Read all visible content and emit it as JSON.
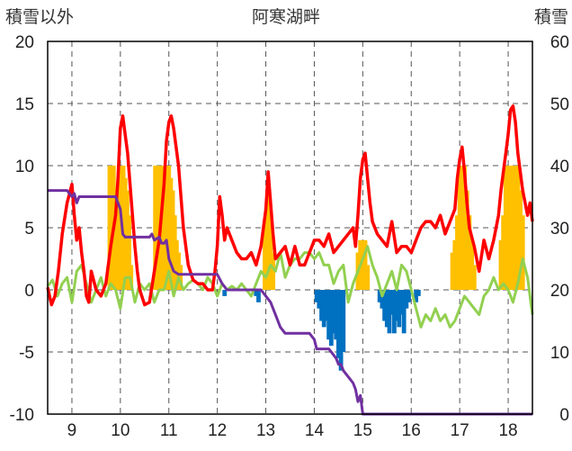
{
  "chart_data": {
    "type": "combo",
    "title": "阿寒湖畔",
    "left_axis_label": "積雪以外",
    "right_axis_label": "積雪",
    "x_ticks": [
      "9",
      "10",
      "11",
      "12",
      "13",
      "14",
      "15",
      "16",
      "17",
      "18"
    ],
    "x_range": [
      8.5,
      18.5
    ],
    "left_ylim": [
      -10,
      20
    ],
    "left_yticks": [
      20,
      15,
      10,
      5,
      0,
      -5,
      -10
    ],
    "right_ylim": [
      0,
      60
    ],
    "right_yticks": [
      60,
      50,
      40,
      30,
      20,
      10,
      0
    ],
    "grid": "dashed vertical and horizontal",
    "colors": {
      "red": "#ff0000",
      "green": "#92d050",
      "purple": "#7030a0",
      "orange": "#ffc000",
      "blue": "#0070c0"
    },
    "series": [
      {
        "color": "red",
        "kind": "line",
        "axis": "left",
        "x": [
          8.5,
          8.58,
          8.65,
          8.72,
          8.8,
          8.9,
          9.0,
          9.05,
          9.1,
          9.15,
          9.2,
          9.25,
          9.3,
          9.35,
          9.4,
          9.5,
          9.6,
          9.7,
          9.8,
          9.9,
          9.95,
          10.0,
          10.05,
          10.1,
          10.15,
          10.2,
          10.25,
          10.3,
          10.35,
          10.4,
          10.5,
          10.6,
          10.7,
          10.8,
          10.9,
          10.95,
          11.0,
          11.05,
          11.1,
          11.2,
          11.3,
          11.4,
          11.5,
          11.6,
          11.7,
          11.8,
          11.9,
          11.95,
          12.0,
          12.05,
          12.1,
          12.15,
          12.2,
          12.3,
          12.4,
          12.5,
          12.6,
          12.7,
          12.8,
          12.9,
          12.95,
          13.0,
          13.05,
          13.1,
          13.15,
          13.2,
          13.3,
          13.4,
          13.5,
          13.6,
          13.7,
          13.8,
          13.9,
          14.0,
          14.1,
          14.2,
          14.3,
          14.4,
          14.5,
          14.6,
          14.7,
          14.8,
          14.85,
          14.9,
          14.95,
          15.0,
          15.05,
          15.1,
          15.15,
          15.2,
          15.3,
          15.4,
          15.5,
          15.6,
          15.7,
          15.8,
          15.9,
          16.0,
          16.1,
          16.2,
          16.3,
          16.4,
          16.5,
          16.6,
          16.7,
          16.8,
          16.9,
          16.95,
          17.0,
          17.05,
          17.1,
          17.15,
          17.2,
          17.3,
          17.4,
          17.5,
          17.6,
          17.7,
          17.8,
          17.85,
          17.9,
          17.95,
          18.0,
          18.05,
          18.1,
          18.15,
          18.2,
          18.3,
          18.4,
          18.45,
          18.5
        ],
        "y": [
          0.2,
          -1.2,
          -0.5,
          1.5,
          4.5,
          7.0,
          8.5,
          6.0,
          4.0,
          5.0,
          3.0,
          1.5,
          -0.5,
          -1.0,
          1.5,
          0.0,
          -0.5,
          0.5,
          3.5,
          6.0,
          9.0,
          13.0,
          14.0,
          12.5,
          11.0,
          8.5,
          6.0,
          3.5,
          1.5,
          0.0,
          -1.2,
          -1.0,
          1.5,
          4.0,
          8.5,
          12.0,
          13.5,
          14.0,
          13.0,
          10.0,
          5.0,
          2.0,
          0.8,
          0.5,
          0.5,
          0.0,
          0.0,
          1.5,
          3.5,
          7.5,
          6.0,
          4.0,
          5.0,
          4.0,
          3.0,
          2.5,
          2.5,
          3.0,
          2.0,
          3.5,
          5.0,
          6.5,
          9.5,
          7.0,
          4.5,
          2.5,
          3.0,
          3.5,
          2.0,
          3.5,
          2.0,
          2.0,
          3.0,
          4.0,
          4.0,
          3.5,
          4.5,
          3.0,
          3.5,
          4.0,
          4.5,
          5.0,
          3.5,
          6.0,
          9.0,
          10.5,
          11.0,
          9.0,
          7.0,
          5.5,
          4.5,
          4.0,
          3.5,
          5.5,
          3.0,
          3.5,
          3.5,
          3.0,
          4.0,
          5.0,
          5.5,
          5.5,
          5.0,
          6.0,
          4.5,
          5.5,
          6.5,
          9.0,
          10.5,
          11.5,
          9.5,
          7.0,
          5.0,
          3.5,
          1.5,
          4.0,
          2.5,
          4.0,
          6.0,
          8.0,
          9.5,
          11.0,
          12.5,
          14.5,
          14.8,
          13.5,
          11.0,
          8.0,
          6.0,
          7.0,
          5.5
        ]
      },
      {
        "color": "green",
        "kind": "line",
        "axis": "left",
        "x": [
          8.5,
          8.6,
          8.7,
          8.8,
          8.9,
          9.0,
          9.1,
          9.2,
          9.3,
          9.4,
          9.5,
          9.6,
          9.7,
          9.8,
          9.9,
          10.0,
          10.1,
          10.2,
          10.3,
          10.4,
          10.5,
          10.6,
          10.7,
          10.8,
          10.9,
          11.0,
          11.1,
          11.2,
          11.3,
          11.4,
          11.5,
          11.6,
          11.7,
          11.8,
          11.9,
          12.0,
          12.1,
          12.2,
          12.3,
          12.4,
          12.5,
          12.6,
          12.7,
          12.8,
          12.9,
          13.0,
          13.1,
          13.2,
          13.3,
          13.4,
          13.5,
          13.6,
          13.7,
          13.8,
          13.9,
          14.0,
          14.1,
          14.2,
          14.3,
          14.4,
          14.5,
          14.6,
          14.7,
          14.8,
          14.9,
          15.0,
          15.1,
          15.2,
          15.3,
          15.4,
          15.5,
          15.6,
          15.7,
          15.8,
          15.9,
          16.0,
          16.1,
          16.2,
          16.3,
          16.4,
          16.5,
          16.6,
          16.7,
          16.8,
          16.9,
          17.0,
          17.1,
          17.2,
          17.3,
          17.4,
          17.5,
          17.6,
          17.7,
          17.8,
          17.9,
          18.0,
          18.1,
          18.2,
          18.3,
          18.4,
          18.5
        ],
        "y": [
          0.3,
          0.8,
          -0.5,
          0.5,
          1.0,
          -1.0,
          1.5,
          2.0,
          0.5,
          -1.0,
          0.0,
          1.0,
          -0.5,
          0.5,
          0.0,
          -1.5,
          1.0,
          1.0,
          -1.0,
          0.5,
          0.0,
          0.5,
          -1.0,
          0.0,
          0.0,
          1.5,
          -0.5,
          1.0,
          0.0,
          0.5,
          0.8,
          0.5,
          0.0,
          1.0,
          0.5,
          -0.5,
          0.5,
          0.0,
          0.3,
          0.0,
          0.5,
          0.0,
          -0.5,
          0.5,
          1.5,
          1.0,
          2.0,
          1.5,
          3.0,
          1.0,
          2.0,
          2.5,
          2.5,
          3.0,
          3.0,
          2.5,
          3.0,
          2.0,
          2.0,
          0.5,
          1.5,
          2.0,
          -1.0,
          0.5,
          1.5,
          2.5,
          3.5,
          2.0,
          1.0,
          -0.5,
          0.5,
          1.5,
          0.0,
          2.0,
          1.5,
          0.0,
          -1.5,
          -3.0,
          -2.0,
          -2.5,
          -1.5,
          -2.5,
          -2.0,
          -3.0,
          -2.5,
          -1.5,
          -0.5,
          -1.0,
          -1.5,
          -2.0,
          -0.5,
          0.0,
          1.0,
          0.0,
          0.5,
          0.0,
          -1.0,
          0.5,
          2.5,
          1.0,
          -2.0
        ]
      },
      {
        "color": "purple",
        "kind": "line",
        "axis": "right",
        "x": [
          8.5,
          8.9,
          9.0,
          9.05,
          9.1,
          9.15,
          9.2,
          9.5,
          9.8,
          9.9,
          9.95,
          10.0,
          10.05,
          10.1,
          10.4,
          10.6,
          10.65,
          10.7,
          10.8,
          10.85,
          10.9,
          10.95,
          11.0,
          11.1,
          11.2,
          11.3,
          11.4,
          11.5,
          11.6,
          11.8,
          12.0,
          12.1,
          12.2,
          12.4,
          12.6,
          12.8,
          12.9,
          12.95,
          13.0,
          13.1,
          13.2,
          13.3,
          13.4,
          13.5,
          13.6,
          13.8,
          13.9,
          14.0,
          14.05,
          14.1,
          14.3,
          14.4,
          14.45,
          14.5,
          14.55,
          14.6,
          14.7,
          14.8,
          14.85,
          14.9,
          14.95,
          15.0,
          15.1,
          15.5,
          16.0,
          16.5,
          17.0,
          17.5,
          18.0,
          18.5
        ],
        "y": [
          36.0,
          36.0,
          35.0,
          35.5,
          34.0,
          35.0,
          35.0,
          35.0,
          35.0,
          35.0,
          34.0,
          33.0,
          29.0,
          28.5,
          28.5,
          28.5,
          29.0,
          28.0,
          28.5,
          27.5,
          27.5,
          28.0,
          25.0,
          23.0,
          22.5,
          22.5,
          22.5,
          22.5,
          22.5,
          22.5,
          22.5,
          21.0,
          20.0,
          20.0,
          20.0,
          20.0,
          20.0,
          19.5,
          19.0,
          18.0,
          16.0,
          14.0,
          13.0,
          13.0,
          13.0,
          13.0,
          13.0,
          12.0,
          10.5,
          10.5,
          10.5,
          9.5,
          9.0,
          8.0,
          8.0,
          7.0,
          6.0,
          5.0,
          4.0,
          2.0,
          3.0,
          0.0,
          0.0,
          0.0,
          0.0,
          0.0,
          0.0,
          0.0,
          0.0,
          0.0
        ]
      },
      {
        "color": "orange",
        "kind": "bar",
        "axis": "left",
        "x": [
          9.78,
          9.82,
          9.86,
          9.9,
          9.94,
          9.98,
          10.02,
          10.06,
          10.1,
          10.14,
          10.18,
          10.22,
          10.72,
          10.76,
          10.8,
          10.84,
          10.88,
          10.92,
          10.96,
          11.0,
          11.04,
          11.08,
          11.12,
          11.16,
          11.2,
          11.24,
          12.98,
          13.02,
          13.06,
          13.1,
          13.15,
          14.9,
          14.95,
          15.0,
          15.05,
          15.1,
          16.85,
          16.9,
          16.95,
          17.0,
          17.05,
          17.1,
          17.15,
          17.2,
          17.25,
          17.3,
          17.85,
          17.9,
          17.95,
          18.0,
          18.05,
          18.1,
          18.15,
          18.2,
          18.25,
          18.3
        ],
        "y": [
          10,
          10,
          10,
          8,
          8,
          10,
          10,
          10,
          9,
          8,
          6,
          2,
          10,
          10,
          10,
          10,
          10,
          10,
          10,
          10,
          9,
          8,
          6,
          4,
          3,
          2,
          5,
          6,
          8,
          6,
          3,
          3,
          4,
          4,
          4,
          2,
          3,
          4,
          6,
          10,
          10,
          10,
          8,
          6,
          4,
          2,
          4,
          6,
          10,
          10,
          10,
          10,
          10,
          10,
          8,
          6
        ]
      },
      {
        "color": "blue",
        "kind": "bar",
        "axis": "left",
        "x": [
          12.15,
          12.8,
          12.85,
          14.05,
          14.1,
          14.15,
          14.2,
          14.25,
          14.3,
          14.35,
          14.4,
          14.45,
          14.5,
          14.55,
          14.6,
          15.35,
          15.4,
          15.45,
          15.5,
          15.55,
          15.6,
          15.65,
          15.7,
          15.75,
          15.8,
          15.85,
          15.9,
          15.95,
          16.1,
          16.15
        ],
        "y": [
          -0.5,
          -0.5,
          -1.0,
          -1.0,
          -1.5,
          -2.5,
          -3.0,
          -2.5,
          -4.0,
          -4.5,
          -3.5,
          -4.0,
          -5.5,
          -6.5,
          -5.0,
          -1.0,
          -1.5,
          -2.5,
          -3.0,
          -3.5,
          -2.0,
          -3.5,
          -2.5,
          -3.0,
          -2.0,
          -3.5,
          -1.5,
          -1.0,
          -1.0,
          -0.5
        ]
      }
    ]
  }
}
